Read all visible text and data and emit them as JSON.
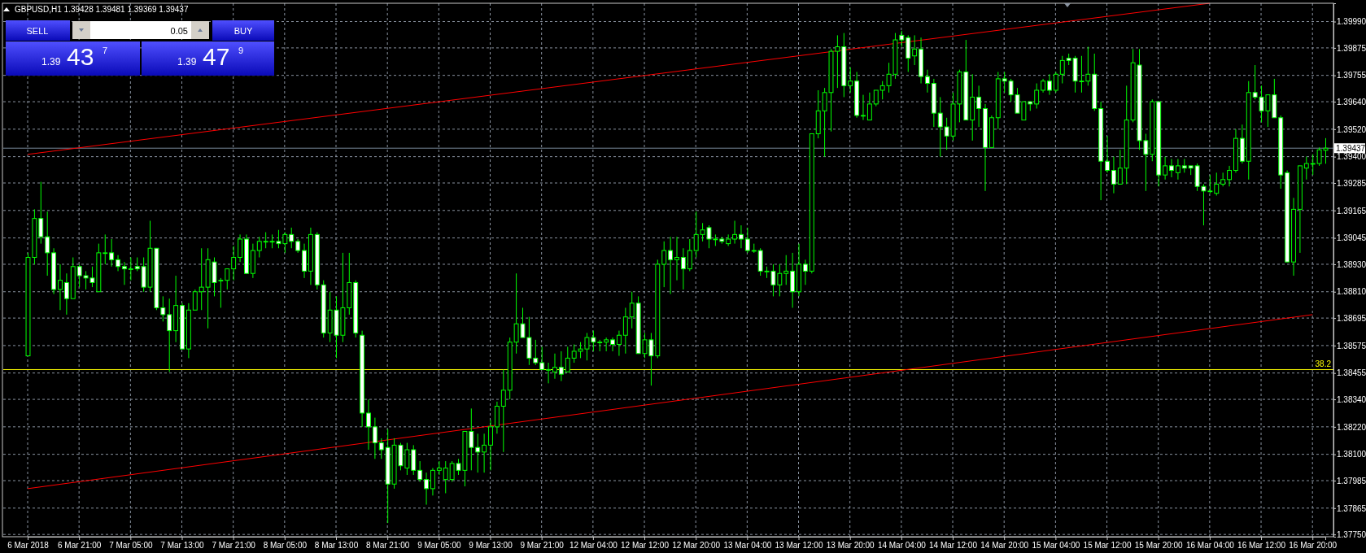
{
  "chart_data": {
    "type": "candlestick",
    "title": "GBPUSD,H1 1.39428 1.39481 1.39369 1.39437",
    "categories": [
      "6 Mar 2018",
      null,
      null,
      null,
      null,
      null,
      null,
      null,
      "6 Mar 21:00",
      null,
      null,
      null,
      null,
      null,
      null,
      null,
      "7 Mar 05:00",
      null,
      null,
      null,
      null,
      null,
      null,
      null,
      "7 Mar 13:00",
      null,
      null,
      null,
      null,
      null,
      null,
      null,
      "7 Mar 21:00",
      null,
      null,
      null,
      null,
      null,
      null,
      null,
      "8 Mar 05:00",
      null,
      null,
      null,
      null,
      null,
      null,
      null,
      "8 Mar 13:00",
      null,
      null,
      null,
      null,
      null,
      null,
      null,
      "8 Mar 21:00",
      null,
      null,
      null,
      null,
      null,
      null,
      null,
      "9 Mar 05:00",
      null,
      null,
      null,
      null,
      null,
      null,
      null,
      "9 Mar 13:00",
      null,
      null,
      null,
      null,
      null,
      null,
      null,
      "9 Mar 21:00",
      null,
      null,
      null,
      null,
      null,
      null,
      null,
      "12 Mar 04:00",
      null,
      null,
      null,
      null,
      null,
      null,
      null,
      "12 Mar 12:00",
      null,
      null,
      null,
      null,
      null,
      null,
      null,
      "12 Mar 20:00",
      null,
      null,
      null,
      null,
      null,
      null,
      null,
      "13 Mar 04:00",
      null,
      null,
      null,
      null,
      null,
      null,
      null,
      "13 Mar 12:00",
      null,
      null,
      null,
      null,
      null,
      null,
      null,
      "13 Mar 20:00",
      null,
      null,
      null,
      null,
      null,
      null,
      null,
      "14 Mar 04:00",
      null,
      null,
      null,
      null,
      null,
      null,
      null,
      "14 Mar 12:00",
      null,
      null,
      null,
      null,
      null,
      null,
      null,
      "14 Mar 20:00",
      null,
      null,
      null,
      null,
      null,
      null,
      null,
      "15 Mar 04:00",
      null,
      null,
      null,
      null,
      null,
      null,
      null,
      "15 Mar 12:00",
      null,
      null,
      null,
      null,
      null,
      null,
      null,
      "15 Mar 20:00",
      null,
      null,
      null,
      null,
      null,
      null,
      null,
      "16 Mar 04:00",
      null,
      null,
      null,
      null,
      null,
      null,
      null,
      "16 Mar 12:00",
      null,
      null,
      null,
      null,
      null,
      null,
      null,
      "16 Mar 20:00",
      null,
      null
    ],
    "series": [
      {
        "type": "line",
        "color": "#ff0000",
        "x": [
          "6 Mar 2018",
          "16 Mar 04:00"
        ],
        "values": [
          1.3941,
          1.4007
        ]
      },
      {
        "type": "line",
        "color": "#ff0000",
        "x": [
          "6 Mar 2018",
          "16 Mar 20:00"
        ],
        "values": [
          1.3795,
          1.3871
        ]
      },
      {
        "type": "candlestick",
        "color": "#00ff00",
        "ohlc": [
          [
            1.3853,
            1.3898,
            1.3853,
            1.3896
          ],
          [
            1.3896,
            1.3917,
            1.3893,
            1.3913
          ],
          [
            1.3913,
            1.3929,
            1.3902,
            1.3905
          ],
          [
            1.3905,
            1.3916,
            1.3888,
            1.3898
          ],
          [
            1.3898,
            1.39,
            1.388,
            1.3882
          ],
          [
            1.3882,
            1.3893,
            1.3873,
            1.3886
          ],
          [
            1.3885,
            1.3889,
            1.3871,
            1.3878
          ],
          [
            1.3878,
            1.3896,
            1.3878,
            1.3892
          ],
          [
            1.3892,
            1.3893,
            1.3883,
            1.3888
          ],
          [
            1.3888,
            1.389,
            1.3882,
            1.3887
          ],
          [
            1.3887,
            1.3892,
            1.3883,
            1.3885
          ],
          [
            1.3881,
            1.3902,
            1.3881,
            1.3898
          ],
          [
            1.3898,
            1.3906,
            1.3893,
            1.3898
          ],
          [
            1.3898,
            1.3904,
            1.3892,
            1.3895
          ],
          [
            1.3895,
            1.3897,
            1.389,
            1.3892
          ],
          [
            1.3892,
            1.3894,
            1.3884,
            1.3891
          ],
          [
            1.3891,
            1.3896,
            1.3886,
            1.3891
          ],
          [
            1.3892,
            1.3896,
            1.389,
            1.3891
          ],
          [
            1.3892,
            1.3896,
            1.3881,
            1.3883
          ],
          [
            1.3883,
            1.3912,
            1.3881,
            1.39
          ],
          [
            1.39,
            1.39,
            1.3873,
            1.3874
          ],
          [
            1.3874,
            1.3879,
            1.3868,
            1.3871
          ],
          [
            1.3871,
            1.3878,
            1.3846,
            1.3864
          ],
          [
            1.3864,
            1.3888,
            1.3859,
            1.3875
          ],
          [
            1.3875,
            1.3876,
            1.3856,
            1.3856
          ],
          [
            1.3856,
            1.3876,
            1.3852,
            1.3873
          ],
          [
            1.3873,
            1.3882,
            1.3873,
            1.3881
          ],
          [
            1.3881,
            1.39,
            1.3873,
            1.3883
          ],
          [
            1.3883,
            1.39,
            1.3865,
            1.3895
          ],
          [
            1.3894,
            1.3896,
            1.3879,
            1.3885
          ],
          [
            1.3886,
            1.3887,
            1.3874,
            1.3886
          ],
          [
            1.3886,
            1.3891,
            1.3882,
            1.3891
          ],
          [
            1.3891,
            1.3901,
            1.3886,
            1.3896
          ],
          [
            1.3896,
            1.3906,
            1.3894,
            1.3904
          ],
          [
            1.3904,
            1.3906,
            1.3889,
            1.3889
          ],
          [
            1.3889,
            1.3902,
            1.3887,
            1.3899
          ],
          [
            1.3899,
            1.3905,
            1.3896,
            1.3903
          ],
          [
            1.3903,
            1.3907,
            1.39,
            1.3903
          ],
          [
            1.3903,
            1.3906,
            1.39,
            1.3903
          ],
          [
            1.3903,
            1.3908,
            1.39,
            1.3902
          ],
          [
            1.3902,
            1.3907,
            1.3898,
            1.3906
          ],
          [
            1.3906,
            1.3909,
            1.39,
            1.3903
          ],
          [
            1.3903,
            1.3904,
            1.3898,
            1.3899
          ],
          [
            1.3899,
            1.3902,
            1.3887,
            1.389
          ],
          [
            1.389,
            1.3909,
            1.3884,
            1.3906
          ],
          [
            1.3906,
            1.3907,
            1.3882,
            1.3884
          ],
          [
            1.3884,
            1.3886,
            1.3861,
            1.3863
          ],
          [
            1.3863,
            1.3881,
            1.3859,
            1.3873
          ],
          [
            1.3873,
            1.3879,
            1.3852,
            1.3862
          ],
          [
            1.3862,
            1.3898,
            1.3859,
            1.3874
          ],
          [
            1.3874,
            1.3898,
            1.3871,
            1.3885
          ],
          [
            1.3885,
            1.3886,
            1.3861,
            1.3863
          ],
          [
            1.3862,
            1.3864,
            1.3822,
            1.3828
          ],
          [
            1.3828,
            1.3834,
            1.3812,
            1.3822
          ],
          [
            1.3822,
            1.3826,
            1.3808,
            1.3815
          ],
          [
            1.3815,
            1.3817,
            1.3808,
            1.3812
          ],
          [
            1.3813,
            1.3821,
            1.378,
            1.3797
          ],
          [
            1.3797,
            1.3817,
            1.3795,
            1.3814
          ],
          [
            1.3814,
            1.3815,
            1.3803,
            1.3805
          ],
          [
            1.3804,
            1.3815,
            1.3801,
            1.3812
          ],
          [
            1.3812,
            1.3814,
            1.3801,
            1.3803
          ],
          [
            1.3803,
            1.3807,
            1.3798,
            1.3799
          ],
          [
            1.3799,
            1.3802,
            1.3788,
            1.3795
          ],
          [
            1.3795,
            1.3804,
            1.3792,
            1.3803
          ],
          [
            1.3803,
            1.3807,
            1.3801,
            1.3804
          ],
          [
            1.3799,
            1.3807,
            1.3793,
            1.3804
          ],
          [
            1.3799,
            1.3807,
            1.3798,
            1.3806
          ],
          [
            1.3806,
            1.3808,
            1.3801,
            1.3803
          ],
          [
            1.3803,
            1.382,
            1.3796,
            1.382
          ],
          [
            1.382,
            1.383,
            1.3803,
            1.3813
          ],
          [
            1.3813,
            1.3819,
            1.3802,
            1.3811
          ],
          [
            1.3811,
            1.3819,
            1.3802,
            1.3814
          ],
          [
            1.3814,
            1.3825,
            1.3803,
            1.3822
          ],
          [
            1.3822,
            1.3833,
            1.3819,
            1.3831
          ],
          [
            1.3831,
            1.3847,
            1.3811,
            1.3838
          ],
          [
            1.3838,
            1.3861,
            1.3834,
            1.3859
          ],
          [
            1.3859,
            1.3889,
            1.3854,
            1.3867
          ],
          [
            1.3867,
            1.3874,
            1.3861,
            1.3861
          ],
          [
            1.3861,
            1.387,
            1.3849,
            1.3852
          ],
          [
            1.3852,
            1.386,
            1.3849,
            1.385
          ],
          [
            1.385,
            1.3857,
            1.3847,
            1.3847
          ],
          [
            1.3847,
            1.385,
            1.3841,
            1.3847
          ],
          [
            1.3846,
            1.3854,
            1.3843,
            1.3848
          ],
          [
            1.3848,
            1.3855,
            1.3842,
            1.3845
          ],
          [
            1.3846,
            1.3857,
            1.3846,
            1.3852
          ],
          [
            1.3852,
            1.3858,
            1.385,
            1.3855
          ],
          [
            1.3855,
            1.3859,
            1.3852,
            1.3856
          ],
          [
            1.3856,
            1.3863,
            1.3851,
            1.3861
          ],
          [
            1.3861,
            1.3864,
            1.3855,
            1.3859
          ],
          [
            1.3859,
            1.386,
            1.3855,
            1.3859
          ],
          [
            1.3859,
            1.3861,
            1.3855,
            1.386
          ],
          [
            1.386,
            1.3861,
            1.3855,
            1.3858
          ],
          [
            1.3858,
            1.3864,
            1.3853,
            1.3862
          ],
          [
            1.3862,
            1.3874,
            1.3854,
            1.387
          ],
          [
            1.387,
            1.3881,
            1.3865,
            1.3876
          ],
          [
            1.3876,
            1.3879,
            1.3854,
            1.3854
          ],
          [
            1.3854,
            1.3863,
            1.3852,
            1.386
          ],
          [
            1.386,
            1.3863,
            1.384,
            1.3853
          ],
          [
            1.3853,
            1.3895,
            1.3852,
            1.3893
          ],
          [
            1.3893,
            1.3903,
            1.3883,
            1.3899
          ],
          [
            1.3899,
            1.3905,
            1.388,
            1.3895
          ],
          [
            1.3895,
            1.3905,
            1.3886,
            1.3896
          ],
          [
            1.3896,
            1.39,
            1.3882,
            1.3891
          ],
          [
            1.3891,
            1.3904,
            1.389,
            1.3899
          ],
          [
            1.3899,
            1.3916,
            1.3896,
            1.3906
          ],
          [
            1.3906,
            1.3911,
            1.3903,
            1.3908
          ],
          [
            1.3909,
            1.391,
            1.39,
            1.3904
          ],
          [
            1.3904,
            1.3906,
            1.3901,
            1.3904
          ],
          [
            1.3904,
            1.3905,
            1.3902,
            1.3903
          ],
          [
            1.3902,
            1.3906,
            1.3901,
            1.3904
          ],
          [
            1.3904,
            1.3912,
            1.3902,
            1.3906
          ],
          [
            1.3906,
            1.391,
            1.39,
            1.3904
          ],
          [
            1.3904,
            1.3909,
            1.3898,
            1.3899
          ],
          [
            1.3899,
            1.3902,
            1.3898,
            1.3899
          ],
          [
            1.3899,
            1.39,
            1.3888,
            1.389
          ],
          [
            1.389,
            1.3892,
            1.3887,
            1.389
          ],
          [
            1.389,
            1.3893,
            1.3879,
            1.3884
          ],
          [
            1.3884,
            1.3893,
            1.3879,
            1.3889
          ],
          [
            1.3889,
            1.3897,
            1.3884,
            1.389
          ],
          [
            1.389,
            1.3898,
            1.3874,
            1.3881
          ],
          [
            1.3881,
            1.3902,
            1.3879,
            1.3893
          ],
          [
            1.3893,
            1.3895,
            1.3884,
            1.389
          ],
          [
            1.389,
            1.395,
            1.3889,
            1.395
          ],
          [
            1.395,
            1.3969,
            1.3948,
            1.396
          ],
          [
            1.396,
            1.397,
            1.394,
            1.3968
          ],
          [
            1.3968,
            1.3987,
            1.3951,
            1.3986
          ],
          [
            1.3986,
            1.3993,
            1.397,
            1.3988
          ],
          [
            1.3988,
            1.3994,
            1.3966,
            1.3971
          ],
          [
            1.3971,
            1.3979,
            1.3968,
            1.3973
          ],
          [
            1.3973,
            1.3977,
            1.3957,
            1.3958
          ],
          [
            1.3958,
            1.3967,
            1.3956,
            1.3958
          ],
          [
            1.3956,
            1.3968,
            1.3956,
            1.3963
          ],
          [
            1.3963,
            1.3969,
            1.3962,
            1.3969
          ],
          [
            1.3969,
            1.3973,
            1.3965,
            1.3971
          ],
          [
            1.3971,
            1.3981,
            1.3968,
            1.3976
          ],
          [
            1.3976,
            1.3994,
            1.3974,
            1.3991
          ],
          [
            1.3993,
            1.3995,
            1.3988,
            1.3991
          ],
          [
            1.3992,
            1.3993,
            1.3977,
            1.3983
          ],
          [
            1.3984,
            1.3993,
            1.398,
            1.3987
          ],
          [
            1.3987,
            1.3992,
            1.3972,
            1.3975
          ],
          [
            1.3975,
            1.3978,
            1.3968,
            1.3972
          ],
          [
            1.3972,
            1.3974,
            1.3953,
            1.3959
          ],
          [
            1.3959,
            1.3966,
            1.394,
            1.3953
          ],
          [
            1.3953,
            1.3957,
            1.3943,
            1.3949
          ],
          [
            1.3949,
            1.3968,
            1.3947,
            1.3963
          ],
          [
            1.3963,
            1.3978,
            1.3955,
            1.3977
          ],
          [
            1.3977,
            1.3991,
            1.3956,
            1.3956
          ],
          [
            1.3956,
            1.3976,
            1.3947,
            1.3966
          ],
          [
            1.3966,
            1.3971,
            1.3953,
            1.3961
          ],
          [
            1.3961,
            1.3963,
            1.3925,
            1.3944
          ],
          [
            1.3944,
            1.3958,
            1.3944,
            1.3957
          ],
          [
            1.3957,
            1.3977,
            1.3952,
            1.3974
          ],
          [
            1.3974,
            1.3977,
            1.3968,
            1.3973
          ],
          [
            1.3973,
            1.3974,
            1.3964,
            1.3967
          ],
          [
            1.3967,
            1.397,
            1.3959,
            1.3959
          ],
          [
            1.3956,
            1.3964,
            1.3956,
            1.3964
          ],
          [
            1.3964,
            1.3964,
            1.396,
            1.3963
          ],
          [
            1.3963,
            1.3972,
            1.3961,
            1.3969
          ],
          [
            1.3969,
            1.3974,
            1.3968,
            1.3973
          ],
          [
            1.3973,
            1.3976,
            1.3967,
            1.3969
          ],
          [
            1.3969,
            1.3977,
            1.3968,
            1.3976
          ],
          [
            1.3976,
            1.3984,
            1.3972,
            1.3982
          ],
          [
            1.3983,
            1.3985,
            1.398,
            1.3982
          ],
          [
            1.3983,
            1.3984,
            1.3968,
            1.3973
          ],
          [
            1.3973,
            1.3984,
            1.3968,
            1.3973
          ],
          [
            1.3973,
            1.3988,
            1.3971,
            1.3976
          ],
          [
            1.3976,
            1.3985,
            1.396,
            1.3961
          ],
          [
            1.3961,
            1.3964,
            1.3921,
            1.3938
          ],
          [
            1.3938,
            1.3949,
            1.3933,
            1.3934
          ],
          [
            1.3934,
            1.394,
            1.3924,
            1.3928
          ],
          [
            1.3928,
            1.3943,
            1.3928,
            1.3935
          ],
          [
            1.3935,
            1.3971,
            1.3928,
            1.3956
          ],
          [
            1.3956,
            1.3987,
            1.3955,
            1.3981
          ],
          [
            1.398,
            1.3987,
            1.3943,
            1.3947
          ],
          [
            1.3947,
            1.395,
            1.3925,
            1.3941
          ],
          [
            1.3941,
            1.3965,
            1.3938,
            1.3964
          ],
          [
            1.3964,
            1.3964,
            1.3927,
            1.3932
          ],
          [
            1.3932,
            1.394,
            1.393,
            1.3936
          ],
          [
            1.3936,
            1.3939,
            1.3931,
            1.3934
          ],
          [
            1.3933,
            1.3939,
            1.393,
            1.3936
          ],
          [
            1.3936,
            1.3939,
            1.3933,
            1.3935
          ],
          [
            1.3936,
            1.3936,
            1.3932,
            1.3935
          ],
          [
            1.3936,
            1.3937,
            1.3925,
            1.3927
          ],
          [
            1.3927,
            1.3928,
            1.391,
            1.3925
          ],
          [
            1.3925,
            1.3932,
            1.3924,
            1.3925
          ],
          [
            1.3924,
            1.3933,
            1.3923,
            1.3928
          ],
          [
            1.3928,
            1.3933,
            1.3927,
            1.393
          ],
          [
            1.393,
            1.3936,
            1.3927,
            1.3934
          ],
          [
            1.3934,
            1.3952,
            1.3933,
            1.3948
          ],
          [
            1.3948,
            1.3954,
            1.3937,
            1.3938
          ],
          [
            1.3938,
            1.3973,
            1.393,
            1.3968
          ],
          [
            1.3968,
            1.398,
            1.3965,
            1.3966
          ],
          [
            1.3966,
            1.3971,
            1.3955,
            1.396
          ],
          [
            1.396,
            1.3967,
            1.3953,
            1.3967
          ],
          [
            1.3967,
            1.3974,
            1.3957,
            1.3957
          ],
          [
            1.3957,
            1.3958,
            1.3926,
            1.3932
          ],
          [
            1.3933,
            1.3934,
            1.3894,
            1.3894
          ],
          [
            1.3894,
            1.3922,
            1.3888,
            1.3917
          ],
          [
            1.3917,
            1.3936,
            1.3898,
            1.3936
          ],
          [
            1.3935,
            1.394,
            1.393,
            1.3937
          ],
          [
            1.3937,
            1.3941,
            1.3932,
            1.3937
          ],
          [
            1.3937,
            1.3944,
            1.3936,
            1.3943
          ],
          [
            1.39428,
            1.39481,
            1.39369,
            1.39437
          ]
        ]
      }
    ],
    "ylim": [
      1.3774,
      1.4007
    ],
    "yticks": [
      {
        "value": 1.3775,
        "label": "1.37750"
      },
      {
        "value": 1.37865,
        "label": "1.37865"
      },
      {
        "value": 1.37985,
        "label": "1.37985"
      },
      {
        "value": 1.381,
        "label": "1.38100"
      },
      {
        "value": 1.3822,
        "label": "1.38220"
      },
      {
        "value": 1.3834,
        "label": "1.38340"
      },
      {
        "value": 1.38455,
        "label": "1.38455"
      },
      {
        "value": 1.38575,
        "label": "1.38575"
      },
      {
        "value": 1.38695,
        "label": "1.38695"
      },
      {
        "value": 1.3881,
        "label": "1.38810"
      },
      {
        "value": 1.3893,
        "label": "1.38930"
      },
      {
        "value": 1.39045,
        "label": "1.39045"
      },
      {
        "value": 1.39165,
        "label": "1.39165"
      },
      {
        "value": 1.39285,
        "label": "1.39285"
      },
      {
        "value": 1.394,
        "label": "1.39400"
      },
      {
        "value": 1.3952,
        "label": "1.39520"
      },
      {
        "value": 1.3964,
        "label": "1.39640"
      },
      {
        "value": 1.39755,
        "label": "1.39755"
      },
      {
        "value": 1.39875,
        "label": "1.39875"
      },
      {
        "value": 1.3999,
        "label": "1.39990"
      }
    ],
    "grid": true,
    "ref_lines": [
      {
        "axis": "y",
        "value": 1.39437,
        "label": "1.39437",
        "color": "#778899"
      },
      {
        "axis": "y",
        "value": 1.3847,
        "color": "#ffff00"
      }
    ],
    "annotations": [
      {
        "text": "38.2",
        "y": 1.3847
      },
      "SELL",
      "0.05",
      "BUY",
      "1.39",
      "43",
      "7",
      "1.39",
      "47",
      "9"
    ]
  }
}
